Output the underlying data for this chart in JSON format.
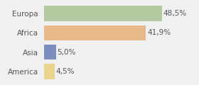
{
  "categories": [
    "Europa",
    "Africa",
    "Asia",
    "America"
  ],
  "values": [
    48.5,
    41.9,
    5.0,
    4.5
  ],
  "labels": [
    "48,5%",
    "41,9%",
    "5,0%",
    "4,5%"
  ],
  "bar_colors": [
    "#b5c9a0",
    "#e8b98a",
    "#7b8fbe",
    "#e8d48a"
  ],
  "background_color": "#f0f0f0",
  "xlim": [
    0,
    62
  ],
  "bar_height": 0.78,
  "label_fontsize": 7.5,
  "tick_fontsize": 7.5,
  "figsize": [
    2.8,
    1.2
  ],
  "dpi": 100
}
